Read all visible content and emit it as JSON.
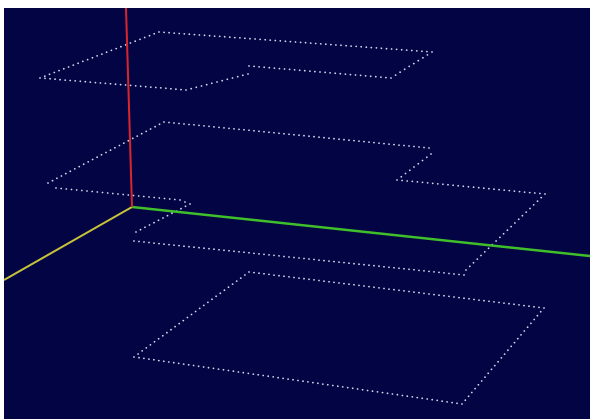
{
  "viewport": {
    "background": "#020444",
    "point_color": "#d4d8ec"
  },
  "axes": [
    {
      "name": "x-axis",
      "color": "#3fbf2a"
    },
    {
      "name": "y-axis",
      "color": "#c9c33a"
    },
    {
      "name": "z-axis",
      "color": "#d9262b"
    }
  ],
  "layers": [
    {
      "name": "layer-1",
      "level": 1
    },
    {
      "name": "layer-2",
      "level": 2
    },
    {
      "name": "layer-3",
      "level": 3
    },
    {
      "name": "layer-4",
      "level": 4
    }
  ]
}
